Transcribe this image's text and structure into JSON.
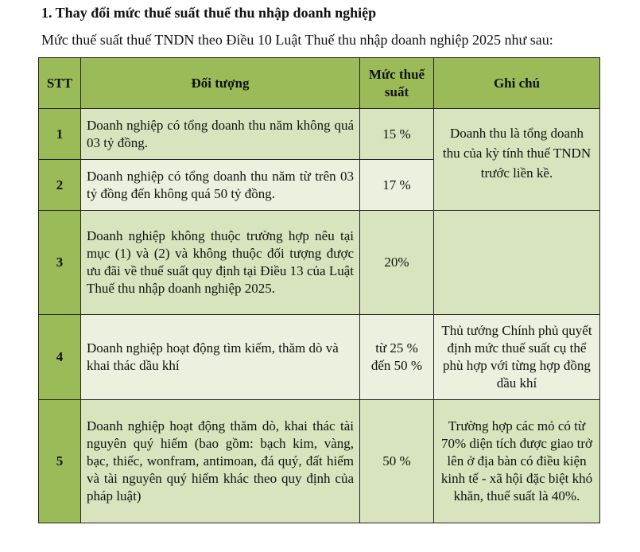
{
  "heading": "1. Thay đổi mức thuế suất thuế thu nhập doanh nghiệp",
  "intro": "Mức thuế suất thuế TNDN theo Điều 10 Luật Thuế thu nhập doanh nghiệp 2025 như sau:",
  "table": {
    "headers": [
      "STT",
      "Đối tượng",
      "Mức thuế suất",
      "Ghi chú"
    ],
    "rows": [
      {
        "stt": "1",
        "subject": "Doanh nghiệp có tổng doanh thu năm không quá 03 tỷ đồng.",
        "rate": "15 %",
        "note": "Doanh thu là tổng doanh thu của kỳ tính thuế TNDN trước liền kề."
      },
      {
        "stt": "2",
        "subject": "Doanh nghiệp có tổng doanh thu năm từ trên 03 tỷ đồng đến không quá 50 tỷ đồng.",
        "rate": "17 %"
      },
      {
        "stt": "3",
        "subject": "Doanh nghiệp không thuộc trường hợp nêu tại mục (1) và (2) và không thuộc đối tượng được ưu đãi về thuế suất quy định tại Điều 13 của Luật Thuế thu nhập doanh nghiệp 2025.",
        "rate": "20%",
        "note": ""
      },
      {
        "stt": "4",
        "subject": "Doanh nghiệp hoạt động tìm kiếm, thăm dò và khai thác dầu khí",
        "rate": "từ 25 % đến 50 %",
        "note": "Thủ tướng Chính phủ quyết định mức thuế suất cụ thể phù hợp với từng hợp đồng dầu khí"
      },
      {
        "stt": "5",
        "subject": "Doanh nghiệp hoạt động thăm dò, khai thác tài nguyên quý hiếm (bao gồm: bạch kim, vàng, bạc, thiếc, wonfram, antimoan, đá quý, đất hiếm và tài nguyên quý hiếm khác theo quy định của pháp luật)",
        "rate": "50 %",
        "note": "Trường hợp các mỏ có từ 70% diện tích được giao trở lên ở địa bàn có điều kiện kinh tế - xã hội đặc biệt khó khăn, thuế suất là 40%."
      }
    ]
  },
  "colors": {
    "header": "#9bbb59",
    "row_dark": "#d7e4bd",
    "row_light": "#ebf1de"
  }
}
